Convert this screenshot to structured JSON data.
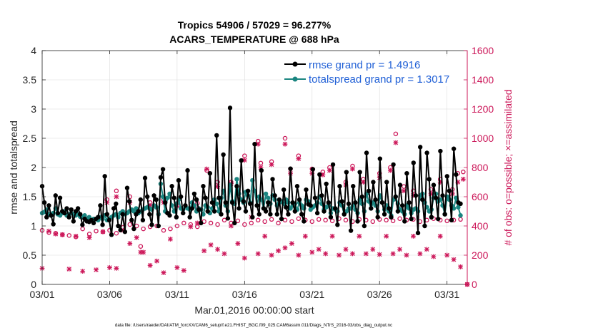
{
  "chart_data": {
    "type": "line",
    "title_line1": "Tropics 54906 / 57029 = 96.277%",
    "title_line2": "ACARS_TEMPERATURE @ 688 hPa",
    "xlabel": "Mar.01,2016 00:00:00 start",
    "ylabel_left": "rmse and totalspread",
    "ylabel_right": "# of obs: o=possible; ×=assimilated",
    "footnote": "data file: /Users/raeder/DAI/ATM_forcXX/CAM6_setup/f.e21.FHIST_BGC.f09_025.CAM6assim.011/Diags_NTrS_2016-03/obs_diag_output.nc",
    "xlim": [
      0,
      31.5
    ],
    "ylim_left": [
      0,
      4
    ],
    "ylim_right": [
      0,
      1600
    ],
    "x_ticks": [
      0,
      5,
      10,
      15,
      20,
      25,
      30
    ],
    "x_tick_labels": [
      "03/01",
      "03/06",
      "03/11",
      "03/16",
      "03/21",
      "03/26",
      "03/31"
    ],
    "y_ticks_left": [
      0,
      0.5,
      1,
      1.5,
      2,
      2.5,
      3,
      3.5,
      4
    ],
    "y_tick_labels_left": [
      "0",
      "0.5",
      "1",
      "1.5",
      "2",
      "2.5",
      "3",
      "3.5",
      "4"
    ],
    "y_ticks_right": [
      0,
      200,
      400,
      600,
      800,
      1000,
      1200,
      1400,
      1600
    ],
    "y_tick_labels_right": [
      "0",
      "200",
      "400",
      "600",
      "800",
      "1000",
      "1200",
      "1400",
      "1600"
    ],
    "colors": {
      "rmse": "#000000",
      "spread": "#1a8580",
      "obs": "#cc1759",
      "legend_text": "#1f5fd6",
      "axis_right": "#cc1759"
    },
    "legend_location": "top-right",
    "series": [
      {
        "name": "rmse grand pr = 1.4916",
        "axis": "left",
        "marker": "circle",
        "values": [
          1.68,
          1.4,
          1.15,
          1.35,
          1.18,
          1.03,
          1.52,
          1.22,
          1.48,
          1.25,
          1.22,
          1.3,
          1.15,
          1.28,
          1.08,
          1.25,
          1.3,
          1.2,
          1.02,
          1.12,
          1.08,
          1.07,
          1.1,
          1.05,
          1.12,
          1.15,
          1.35,
          1.02,
          1.85,
          1.2,
          1.1,
          0.85,
          1.3,
          1.38,
          1.0,
          0.93,
          1.2,
          0.9,
          1.65,
          1.42,
          1.1,
          0.95,
          1.2,
          1.25,
          1.45,
          1.1,
          1.82,
          1.5,
          1.2,
          1.02,
          1.52,
          1.45,
          1.0,
          1.83,
          1.97,
          1.4,
          1.22,
          1.18,
          1.68,
          1.48,
          1.15,
          1.78,
          1.5,
          1.22,
          1.35,
          1.95,
          1.15,
          1.3,
          1.55,
          1.45,
          1.28,
          1.05,
          1.68,
          1.48,
          1.25,
          1.9,
          1.4,
          1.25,
          2.55,
          1.48,
          1.2,
          2.22,
          1.4,
          1.13,
          3.02,
          1.4,
          1.05,
          1.68,
          1.3,
          2.12,
          1.42,
          1.25,
          1.6,
          1.38,
          1.15,
          2.4,
          1.35,
          1.2,
          1.95,
          1.3,
          1.25,
          1.4,
          1.2,
          1.8,
          1.52,
          1.2,
          1.45,
          1.12,
          1.62,
          1.32,
          1.2,
          1.98,
          1.4,
          1.25,
          1.68,
          1.45,
          1.2,
          1.08,
          1.62,
          1.37,
          1.35,
          1.97,
          1.48,
          1.22,
          1.88,
          1.52,
          1.25,
          1.72,
          1.4,
          1.15,
          2.05,
          1.3,
          1.02,
          1.68,
          1.42,
          1.2,
          1.92,
          1.38,
          0.92,
          1.68,
          1.4,
          1.08,
          1.92,
          1.5,
          1.0,
          2.25,
          1.6,
          1.3,
          1.75,
          1.45,
          1.15,
          2.15,
          1.4,
          1.2,
          1.75,
          1.3,
          1.15,
          2.05,
          1.5,
          1.25,
          1.7,
          1.35,
          1.08,
          1.9,
          1.4,
          1.12,
          2.08,
          1.52,
          0.88,
          2.35,
          1.45,
          1.0,
          2.25,
          1.8,
          1.15,
          1.7,
          1.48,
          1.12,
          2.28,
          1.52,
          1.2,
          1.85,
          1.6,
          1.1,
          2.32,
          1.88,
          1.4,
          1.38
        ]
      },
      {
        "name": "totalspread grand pr = 1.3017",
        "axis": "left",
        "marker": "circle",
        "values": [
          1.22,
          1.24,
          1.28,
          1.2,
          1.18,
          1.22,
          1.3,
          1.2,
          1.18,
          1.22,
          1.25,
          1.18,
          1.2,
          1.22,
          1.2,
          1.18,
          1.2,
          1.16,
          1.15,
          1.18,
          1.12,
          1.15,
          1.1,
          1.12,
          1.12,
          1.1,
          1.15,
          1.12,
          1.18,
          1.1,
          1.12,
          1.15,
          1.18,
          1.2,
          1.15,
          1.22,
          1.25,
          1.2,
          1.22,
          1.25,
          1.28,
          1.25,
          1.3,
          1.22,
          1.25,
          1.28,
          1.3,
          1.32,
          1.3,
          1.28,
          1.35,
          1.32,
          1.2,
          1.72,
          1.5,
          1.25,
          1.48,
          1.55,
          1.35,
          1.25,
          1.38,
          1.45,
          1.3,
          1.28,
          1.35,
          1.3,
          1.28,
          1.4,
          1.35,
          1.25,
          1.3,
          1.28,
          1.2,
          1.35,
          1.32,
          1.22,
          1.3,
          1.45,
          1.38,
          1.25,
          1.48,
          1.6,
          1.35,
          1.25,
          1.7,
          1.42,
          1.38,
          1.8,
          1.55,
          1.45,
          1.4,
          1.58,
          1.52,
          1.4,
          1.78,
          1.6,
          1.35,
          1.5,
          1.45,
          1.3,
          1.55,
          1.48,
          1.38,
          1.52,
          1.45,
          1.35,
          1.4,
          1.42,
          1.38,
          1.45,
          1.4,
          1.3,
          1.35,
          1.38,
          1.28,
          1.4,
          1.35,
          1.3,
          1.45,
          1.42,
          1.28,
          1.32,
          1.35,
          1.4,
          1.5,
          1.38,
          1.28,
          1.32,
          1.35,
          1.22,
          1.3,
          1.28,
          1.25,
          1.4,
          1.35,
          1.2,
          1.25,
          1.3,
          1.3,
          1.35,
          1.28,
          1.22,
          1.45,
          1.38,
          1.25,
          1.55,
          1.42,
          1.3,
          1.4,
          1.35,
          1.25,
          1.52,
          1.4,
          1.28,
          1.35,
          1.25,
          1.18,
          1.45,
          1.5,
          1.38,
          1.28,
          1.25,
          1.2,
          1.35,
          1.3,
          1.22,
          1.28,
          1.3,
          1.25,
          1.52,
          1.55,
          1.4,
          1.32,
          1.25,
          1.28,
          1.48,
          1.55,
          1.42,
          1.45,
          1.35,
          1.2,
          1.5,
          1.45,
          1.35,
          1.3,
          1.48,
          1.32,
          1.18
        ]
      },
      {
        "name": "obs possible",
        "axis": "right",
        "marker": "o",
        "points": [
          [
            0,
            370
          ],
          [
            0.5,
            355
          ],
          [
            1,
            350
          ],
          [
            1.5,
            340
          ],
          [
            2,
            335
          ],
          [
            2.5,
            325
          ],
          [
            3,
            380
          ],
          [
            3.5,
            345
          ],
          [
            4,
            365
          ],
          [
            4.5,
            360
          ],
          [
            5,
            370
          ],
          [
            5.5,
            350
          ],
          [
            6,
            390
          ],
          [
            6.5,
            410
          ],
          [
            7,
            400
          ],
          [
            7.5,
            380
          ],
          [
            8,
            395
          ],
          [
            8.5,
            400
          ],
          [
            9,
            370
          ],
          [
            9.5,
            380
          ],
          [
            10,
            400
          ],
          [
            10.5,
            420
          ],
          [
            11,
            410
          ],
          [
            11.5,
            395
          ],
          [
            12,
            430
          ],
          [
            12.5,
            420
          ],
          [
            13,
            410
          ],
          [
            13.5,
            440
          ],
          [
            14,
            420
          ],
          [
            14.5,
            435
          ],
          [
            15,
            410
          ],
          [
            15.5,
            420
          ],
          [
            16,
            440
          ],
          [
            16.5,
            430
          ],
          [
            17,
            445
          ],
          [
            17.5,
            420
          ],
          [
            18,
            440
          ],
          [
            18.5,
            430
          ],
          [
            19,
            450
          ],
          [
            19.5,
            440
          ],
          [
            20,
            430
          ],
          [
            20.5,
            445
          ],
          [
            21,
            440
          ],
          [
            21.5,
            435
          ],
          [
            22,
            450
          ],
          [
            22.5,
            440
          ],
          [
            23,
            430
          ],
          [
            23.5,
            445
          ],
          [
            24,
            440
          ],
          [
            24.5,
            430
          ],
          [
            25,
            445
          ],
          [
            25.5,
            440
          ],
          [
            26,
            435
          ],
          [
            26.5,
            450
          ],
          [
            27,
            440
          ],
          [
            27.5,
            445
          ],
          [
            28,
            430
          ],
          [
            28.5,
            440
          ],
          [
            29,
            450
          ],
          [
            29.5,
            440
          ],
          [
            30,
            435
          ],
          [
            30.5,
            440
          ],
          [
            31,
            445
          ],
          [
            31.5,
            0
          ],
          [
            5.5,
            640
          ],
          [
            4.8,
            580
          ],
          [
            6.5,
            600
          ],
          [
            7.3,
            260
          ],
          [
            8,
            560
          ],
          [
            9,
            580
          ],
          [
            10,
            555
          ],
          [
            11.5,
            555
          ],
          [
            12.2,
            780
          ],
          [
            13,
            700
          ],
          [
            14,
            700
          ],
          [
            15,
            880
          ],
          [
            16,
            980
          ],
          [
            16.2,
            830
          ],
          [
            17,
            840
          ],
          [
            18,
            1000
          ],
          [
            18.4,
            790
          ],
          [
            19,
            880
          ],
          [
            20,
            790
          ],
          [
            20.8,
            770
          ],
          [
            21.3,
            800
          ],
          [
            22.5,
            700
          ],
          [
            23,
            810
          ],
          [
            23.8,
            720
          ],
          [
            25,
            760
          ],
          [
            25.8,
            800
          ],
          [
            26.2,
            1030
          ],
          [
            26.8,
            670
          ],
          [
            27.5,
            640
          ],
          [
            28.8,
            650
          ],
          [
            29.5,
            720
          ],
          [
            30.4,
            650
          ],
          [
            30.8,
            760
          ],
          [
            31.2,
            770
          ]
        ]
      },
      {
        "name": "obs assimilated",
        "axis": "right",
        "marker": "x",
        "points": [
          [
            0,
            110
          ],
          [
            0.5,
            365
          ],
          [
            1,
            345
          ],
          [
            1.5,
            340
          ],
          [
            2,
            105
          ],
          [
            2.5,
            330
          ],
          [
            3,
            90
          ],
          [
            3.5,
            320
          ],
          [
            4,
            100
          ],
          [
            4.5,
            360
          ],
          [
            5,
            115
          ],
          [
            5.5,
            110
          ],
          [
            6,
            370
          ],
          [
            6.5,
            280
          ],
          [
            7,
            320
          ],
          [
            7.5,
            220
          ],
          [
            8,
            130
          ],
          [
            8.5,
            160
          ],
          [
            9,
            80
          ],
          [
            9.5,
            310
          ],
          [
            10,
            115
          ],
          [
            10.5,
            95
          ],
          [
            11,
            395
          ],
          [
            11.5,
            420
          ],
          [
            12,
            230
          ],
          [
            12.5,
            270
          ],
          [
            13,
            240
          ],
          [
            13.5,
            210
          ],
          [
            14,
            400
          ],
          [
            14.5,
            280
          ],
          [
            15,
            180
          ],
          [
            15.5,
            460
          ],
          [
            16,
            210
          ],
          [
            16.5,
            330
          ],
          [
            17,
            200
          ],
          [
            17.5,
            230
          ],
          [
            18,
            250
          ],
          [
            18.5,
            280
          ],
          [
            19,
            200
          ],
          [
            19.5,
            330
          ],
          [
            20,
            220
          ],
          [
            20.5,
            240
          ],
          [
            21,
            210
          ],
          [
            21.5,
            330
          ],
          [
            22,
            200
          ],
          [
            22.5,
            240
          ],
          [
            23,
            210
          ],
          [
            23.5,
            330
          ],
          [
            24,
            210
          ],
          [
            24.5,
            240
          ],
          [
            25,
            205
          ],
          [
            25.5,
            330
          ],
          [
            26,
            210
          ],
          [
            26.5,
            240
          ],
          [
            27,
            200
          ],
          [
            27.5,
            330
          ],
          [
            28,
            210
          ],
          [
            28.5,
            240
          ],
          [
            29,
            190
          ],
          [
            29.5,
            330
          ],
          [
            30,
            200
          ],
          [
            30.5,
            170
          ],
          [
            31,
            120
          ],
          [
            31.5,
            0
          ],
          [
            5.5,
            600
          ],
          [
            4.8,
            560
          ],
          [
            6.5,
            560
          ],
          [
            7.3,
            220
          ],
          [
            8,
            540
          ],
          [
            9,
            560
          ],
          [
            10,
            535
          ],
          [
            11.5,
            520
          ],
          [
            12.2,
            790
          ],
          [
            13,
            670
          ],
          [
            14,
            690
          ],
          [
            15,
            850
          ],
          [
            16,
            960
          ],
          [
            16.2,
            800
          ],
          [
            17,
            820
          ],
          [
            18,
            960
          ],
          [
            18.4,
            760
          ],
          [
            19,
            860
          ],
          [
            20,
            760
          ],
          [
            20.8,
            750
          ],
          [
            21.3,
            780
          ],
          [
            22.5,
            680
          ],
          [
            23,
            790
          ],
          [
            23.8,
            700
          ],
          [
            25,
            730
          ],
          [
            25.8,
            780
          ],
          [
            26.2,
            970
          ],
          [
            26.8,
            640
          ],
          [
            27.5,
            610
          ],
          [
            28.8,
            620
          ],
          [
            29.5,
            700
          ],
          [
            30.4,
            620
          ],
          [
            30.8,
            700
          ],
          [
            31.2,
            720
          ]
        ]
      }
    ]
  }
}
